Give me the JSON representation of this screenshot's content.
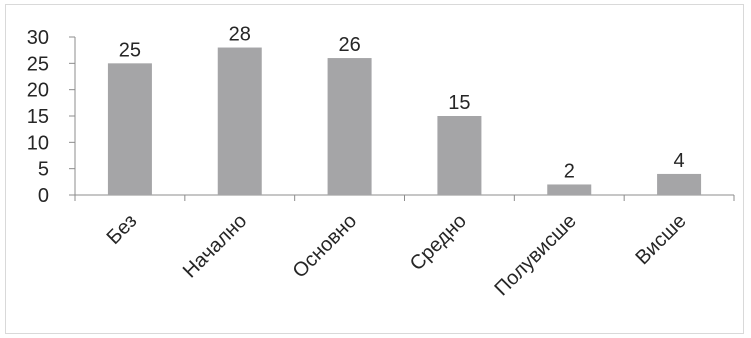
{
  "chart_data": {
    "type": "bar",
    "categories": [
      "Без",
      "Начално",
      "Основно",
      "Средно",
      "Полувисше",
      "Висше"
    ],
    "values": [
      25,
      28,
      26,
      15,
      2,
      4
    ],
    "data_labels": [
      "25",
      "28",
      "26",
      "15",
      "2",
      "4"
    ],
    "title": "",
    "xlabel": "",
    "ylabel": "",
    "ylim": [
      0,
      30
    ],
    "yticks": [
      0,
      5,
      10,
      15,
      20,
      25,
      30
    ],
    "ytick_labels": [
      "0",
      "5",
      "10",
      "15",
      "20",
      "25",
      "30"
    ],
    "grid": false,
    "legend": "none",
    "bar_color": "#a5a5a7",
    "axis_color": "#8c8c8c"
  }
}
